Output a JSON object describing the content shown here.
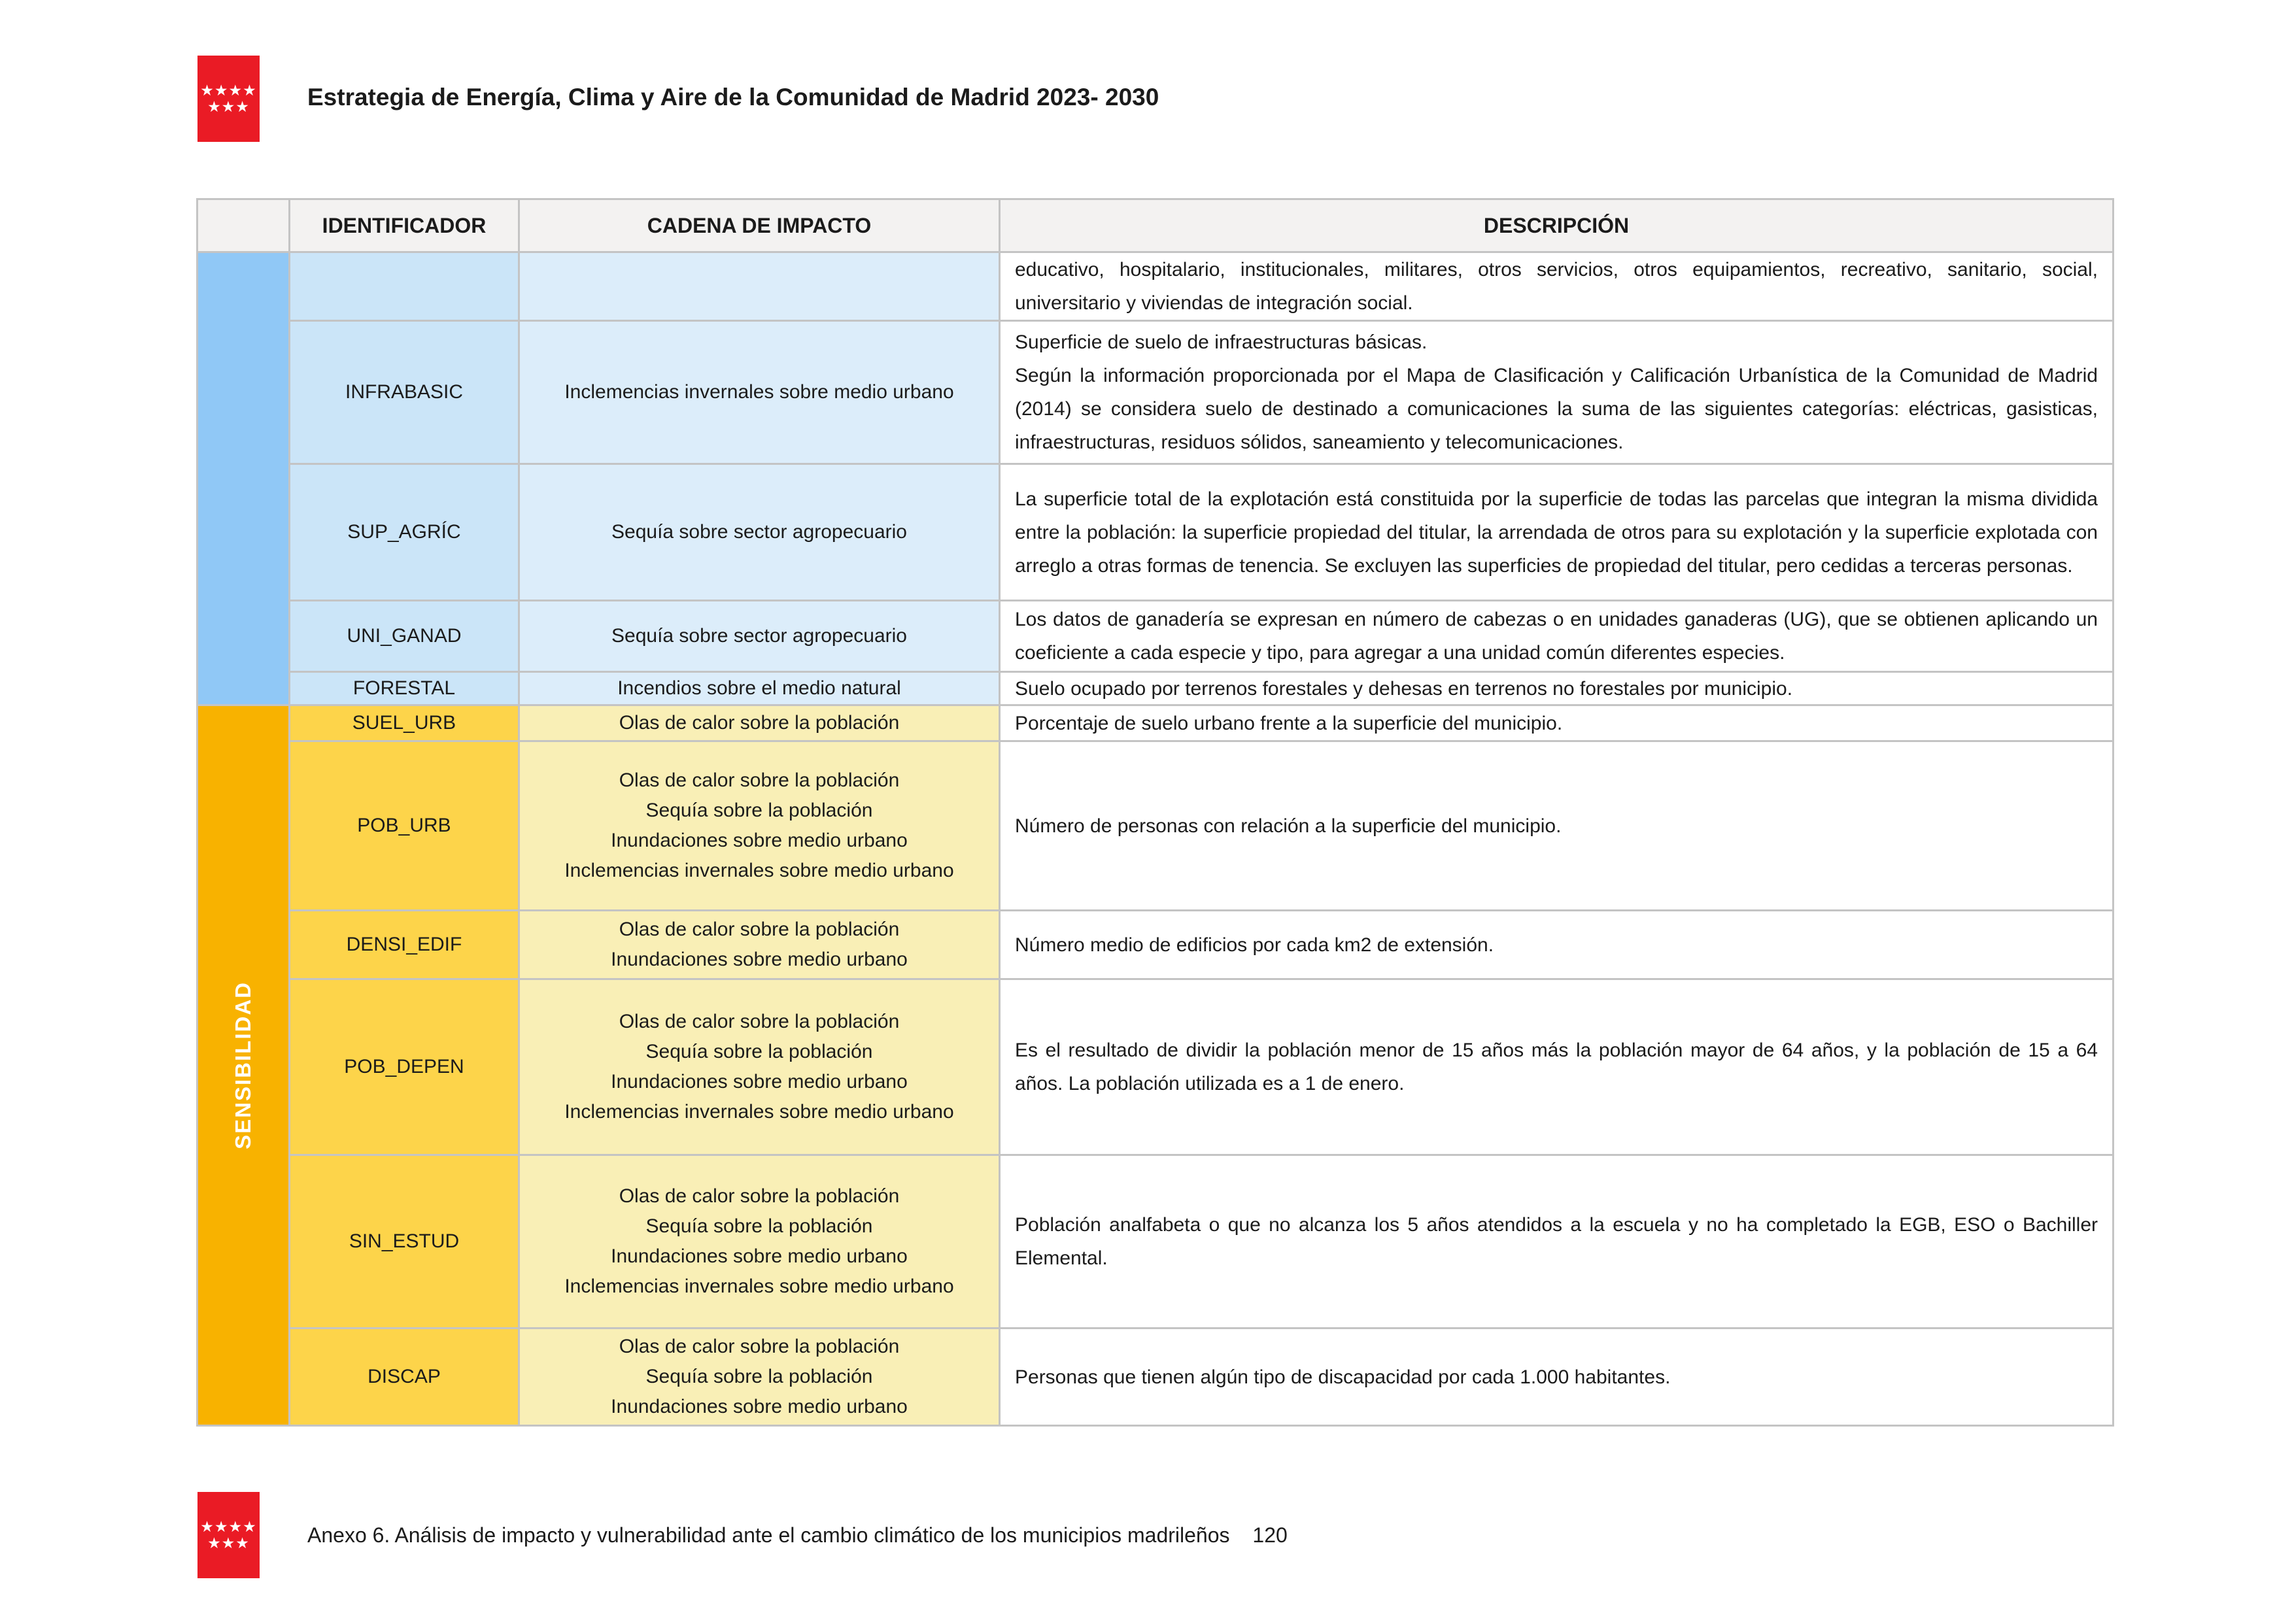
{
  "header": {
    "title": "Estrategia de Energía, Clima y Aire de la Comunidad de Madrid 2023- 2030",
    "logo_color": "#ea1b25",
    "logo_stars_top": "★★★★",
    "logo_stars_bottom": "★★★"
  },
  "table": {
    "columns": [
      "IDENTIFICADOR",
      "CADENA DE IMPACTO",
      "DESCRIPCIÓN"
    ],
    "border_color": "#c4c4c4",
    "header_bg": "#f3f2f1",
    "sections": [
      {
        "label": "",
        "strip_bg": "#90c8f6",
        "id_bg": "#cbe5f8",
        "chain_bg": "#dcedfa",
        "rows": [
          {
            "id": "",
            "impacts": [],
            "descripcion": [
              "educativo, hospitalario, institucionales, militares, otros servicios, otros equipamientos, recreativo, sanitario, social, universitario y viviendas de integración social."
            ]
          },
          {
            "id": "INFRABASIC",
            "impacts": [
              "Inclemencias invernales sobre medio urbano"
            ],
            "descripcion": [
              "Superficie de suelo de infraestructuras básicas.",
              "Según la información proporcionada por el Mapa de Clasificación y Calificación Urbanística de la Comunidad de Madrid (2014) se considera suelo de destinado a comunicaciones la suma de las siguientes categorías: eléctricas, gasisticas, infraestructuras, residuos sólidos, saneamiento y telecomunicaciones."
            ]
          },
          {
            "id": "SUP_AGRÍC",
            "impacts": [
              "Sequía sobre sector agropecuario"
            ],
            "descripcion": [
              "La superficie total de la explotación está constituida por la superficie de todas las parcelas que integran la misma dividida entre la población: la superficie propiedad del titular, la arrendada de otros para su explotación y la superficie explotada con arreglo a otras formas de tenencia. Se excluyen las superficies de propiedad del titular, pero cedidas a terceras personas."
            ]
          },
          {
            "id": "UNI_GANAD",
            "impacts": [
              "Sequía sobre sector agropecuario"
            ],
            "descripcion": [
              "Los datos de ganadería se expresan en número de cabezas o en unidades ganaderas (UG), que se obtienen aplicando un coeficiente a cada especie y tipo, para agregar a una unidad común diferentes especies."
            ]
          },
          {
            "id": "FORESTAL",
            "impacts": [
              "Incendios sobre el medio natural"
            ],
            "descripcion": [
              "Suelo ocupado por terrenos forestales y dehesas en terrenos no forestales por municipio."
            ]
          }
        ]
      },
      {
        "label": "SENSIBILIDAD",
        "strip_bg": "#f8b200",
        "id_bg": "#fdd44a",
        "chain_bg": "#f9efb6",
        "rows": [
          {
            "id": "SUEL_URB",
            "impacts": [
              "Olas de calor sobre la población"
            ],
            "descripcion": [
              "Porcentaje de suelo urbano frente a la superficie del municipio."
            ]
          },
          {
            "id": "POB_URB",
            "impacts": [
              "Olas de calor sobre la población",
              "Sequía sobre la población",
              "Inundaciones sobre medio urbano",
              "Inclemencias invernales sobre medio urbano"
            ],
            "descripcion": [
              "Número de personas con relación a la superficie del municipio."
            ]
          },
          {
            "id": "DENSI_EDIF",
            "impacts": [
              "Olas de calor sobre la población",
              "Inundaciones sobre medio urbano"
            ],
            "descripcion": [
              "Número medio de edificios por cada km2 de extensión."
            ]
          },
          {
            "id": "POB_DEPEN",
            "impacts": [
              "Olas de calor sobre la población",
              "Sequía sobre la población",
              "Inundaciones sobre medio urbano",
              "Inclemencias invernales sobre medio urbano"
            ],
            "descripcion": [
              "Es el resultado de dividir la población menor de 15 años más la población mayor de 64 años, y la población de 15 a 64 años. La población utilizada es a 1 de enero."
            ]
          },
          {
            "id": "SIN_ESTUD",
            "impacts": [
              "Olas de calor sobre la población",
              "Sequía sobre la población",
              "Inundaciones sobre medio urbano",
              "Inclemencias invernales sobre medio urbano"
            ],
            "descripcion": [
              "Población analfabeta o que no alcanza los 5 años atendidos a la escuela y no ha completado la EGB, ESO o Bachiller Elemental."
            ]
          },
          {
            "id": "DISCAP",
            "impacts": [
              "Olas de calor sobre la población",
              "Sequía sobre la población",
              "Inundaciones sobre medio urbano"
            ],
            "descripcion": [
              "Personas que tienen algún tipo de discapacidad por cada 1.000 habitantes."
            ]
          }
        ]
      }
    ]
  },
  "footer": {
    "text": "Anexo 6. Análisis de impacto y vulnerabilidad ante el cambio climático de los municipios madrileños",
    "page_number": "120"
  }
}
